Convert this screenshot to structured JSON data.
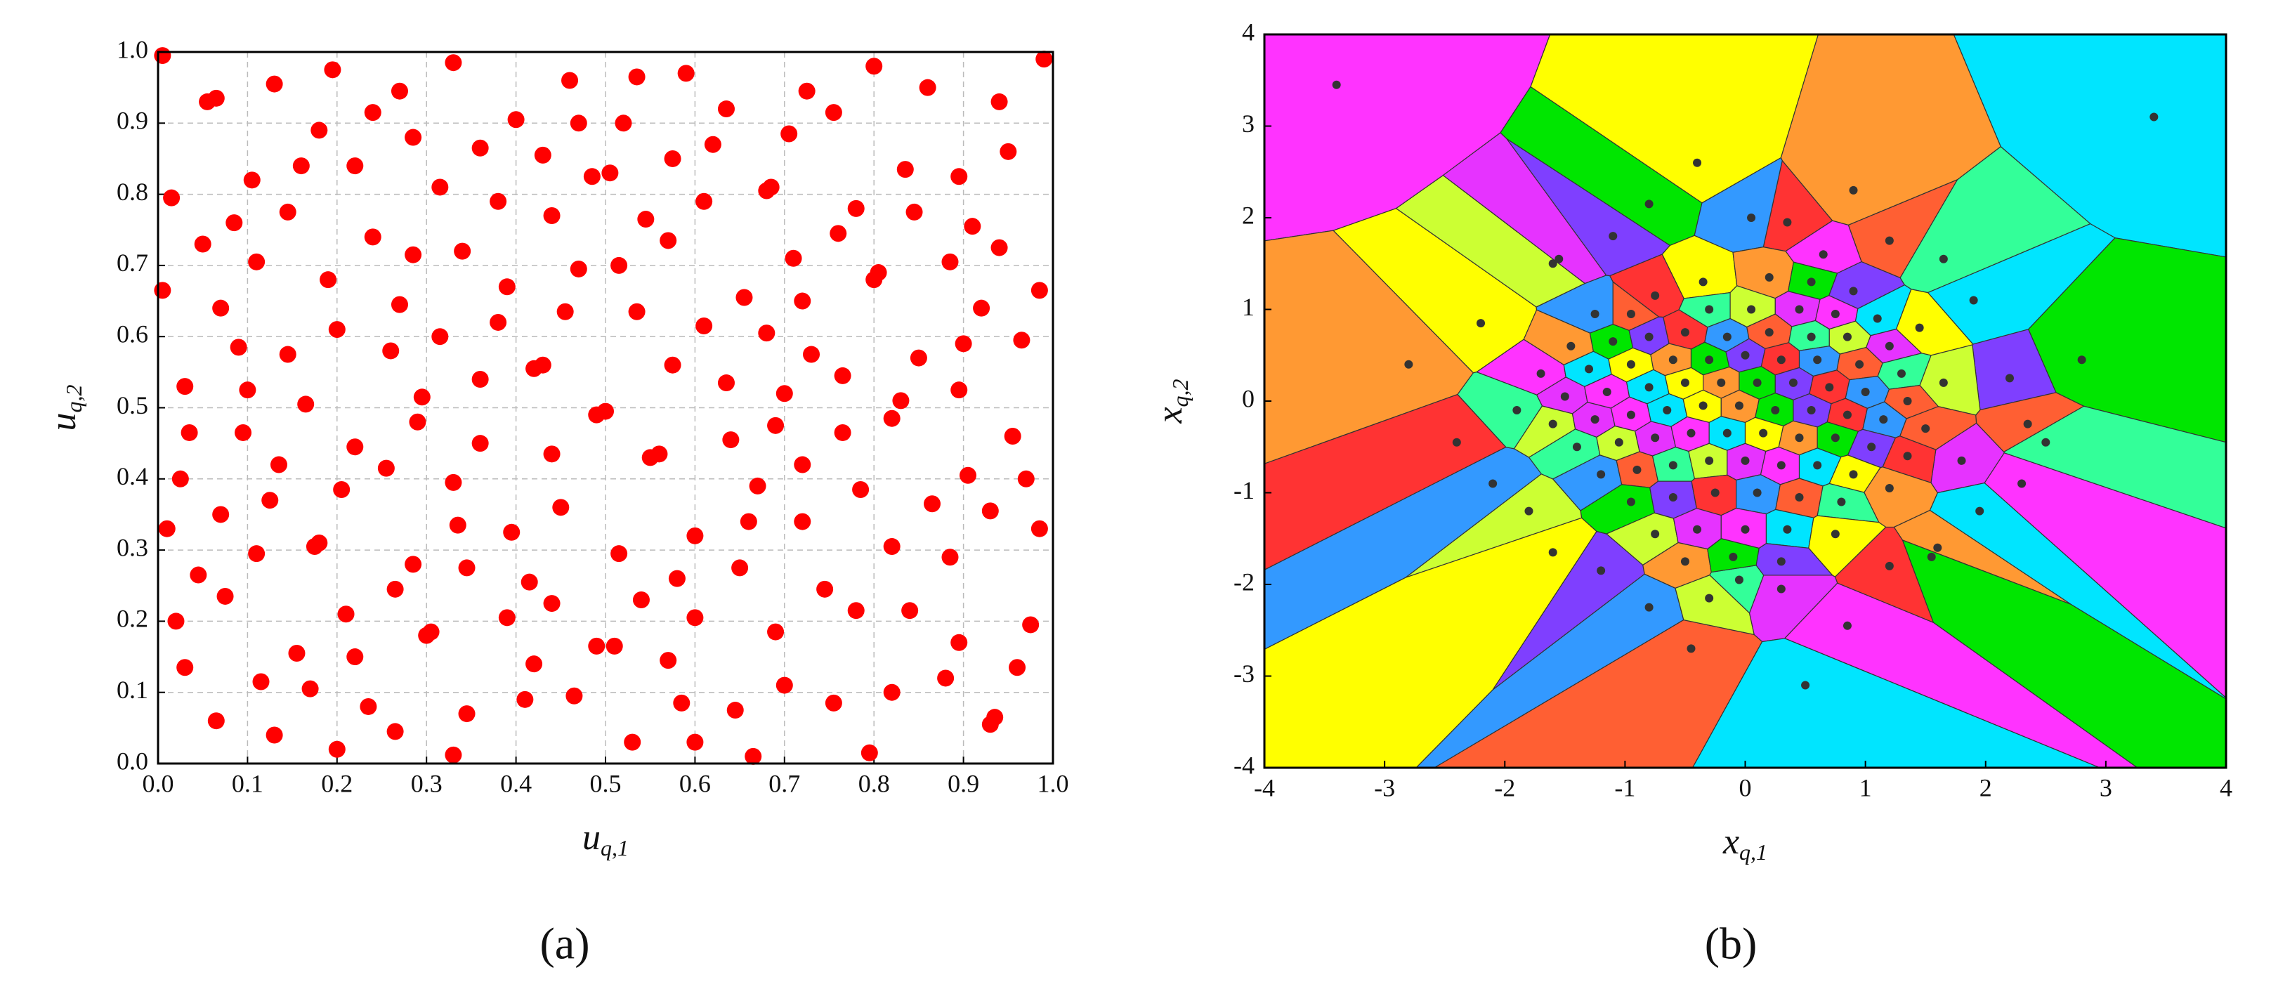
{
  "chart_data": [
    {
      "type": "scatter",
      "panel_label": "(a)",
      "x_label": "u",
      "x_label_sub": "q,1",
      "y_label": "u",
      "y_label_sub": "q,2",
      "color": "#ff0000",
      "grid": true,
      "xlim": [
        0,
        1
      ],
      "ylim": [
        0,
        1
      ],
      "xticks": [
        {
          "value": 0,
          "label": "0.0"
        },
        0.1,
        0.2,
        0.3,
        0.4,
        0.5,
        0.6,
        0.7,
        0.8,
        0.9,
        {
          "value": 1,
          "label": "1.0"
        }
      ],
      "yticks": [
        {
          "value": 0,
          "label": "0.0"
        },
        0.1,
        0.2,
        0.3,
        0.4,
        0.5,
        0.6,
        0.7,
        0.8,
        0.9,
        {
          "value": 1,
          "label": "1.0"
        }
      ],
      "x": [
        0.005,
        0.99,
        0.33,
        0.195,
        0.8,
        0.59,
        0.535,
        0.46,
        0.13,
        0.86,
        0.27,
        0.725,
        0.065,
        0.055,
        0.94,
        0.24,
        0.755,
        0.635,
        0.4,
        0.47,
        0.52,
        0.18,
        0.285,
        0.705,
        0.62,
        0.36,
        0.95,
        0.43,
        0.575,
        0.835,
        0.22,
        0.16,
        0.505,
        0.485,
        0.895,
        0.105,
        0.685,
        0.68,
        0.315,
        0.015,
        0.61,
        0.38,
        0.78,
        0.845,
        0.145,
        0.44,
        0.545,
        0.085,
        0.91,
        0.24,
        0.76,
        0.57,
        0.05,
        0.94,
        0.34,
        0.285,
        0.71,
        0.885,
        0.11,
        0.515,
        0.47,
        0.805,
        0.8,
        0.19,
        0.39,
        0.985,
        0.005,
        0.655,
        0.72,
        0.27,
        0.07,
        0.455,
        0.535,
        0.92,
        0.38,
        0.61,
        0.2,
        0.315,
        0.68,
        0.965,
        0.9,
        0.09,
        0.26,
        0.145,
        0.73,
        0.85,
        0.43,
        0.42,
        0.575,
        0.765,
        0.36,
        0.635,
        0.03,
        0.1,
        0.895,
        0.7,
        0.83,
        0.165,
        0.295,
        0.5,
        0.49,
        0.82,
        0.29,
        0.69,
        0.035,
        0.095,
        0.765,
        0.955,
        0.64,
        0.36,
        0.22,
        0.56,
        0.55,
        0.44,
        0.135,
        0.255,
        0.72,
        0.905,
        0.97,
        0.025,
        0.33,
        0.67,
        0.205,
        0.785,
        0.865,
        0.125,
        0.45,
        0.93,
        0.07,
        0.72,
        0.66,
        0.335,
        0.01,
        0.985,
        0.6,
        0.395,
        0.18,
        0.175,
        0.82,
        0.515,
        0.11,
        0.885,
        0.285,
        0.345,
        0.65,
        0.045,
        0.415,
        0.58,
        0.745,
        0.265,
        0.075,
        0.54,
        0.44,
        0.84,
        0.78,
        0.21,
        0.39,
        0.6,
        0.02,
        0.975,
        0.305,
        0.3,
        0.69,
        0.895,
        0.49,
        0.51,
        0.155,
        0.22,
        0.57,
        0.42,
        0.96,
        0.03,
        0.115,
        0.88,
        0.17,
        0.7,
        0.82,
        0.465,
        0.41,
        0.585,
        0.755,
        0.235,
        0.645,
        0.345,
        0.065,
        0.935,
        0.93,
        0.265,
        0.13,
        0.53,
        0.6,
        0.2,
        0.795,
        0.33,
        0.665
      ],
      "y": [
        0.995,
        0.99,
        0.985,
        0.975,
        0.98,
        0.97,
        0.965,
        0.96,
        0.955,
        0.95,
        0.945,
        0.945,
        0.935,
        0.93,
        0.93,
        0.915,
        0.915,
        0.92,
        0.905,
        0.9,
        0.9,
        0.89,
        0.88,
        0.885,
        0.87,
        0.865,
        0.86,
        0.855,
        0.85,
        0.835,
        0.84,
        0.84,
        0.83,
        0.825,
        0.825,
        0.82,
        0.81,
        0.805,
        0.81,
        0.795,
        0.79,
        0.79,
        0.78,
        0.775,
        0.775,
        0.77,
        0.765,
        0.76,
        0.755,
        0.74,
        0.745,
        0.735,
        0.73,
        0.725,
        0.72,
        0.715,
        0.71,
        0.705,
        0.705,
        0.7,
        0.695,
        0.69,
        0.68,
        0.68,
        0.67,
        0.665,
        0.665,
        0.655,
        0.65,
        0.645,
        0.64,
        0.635,
        0.635,
        0.64,
        0.62,
        0.615,
        0.61,
        0.6,
        0.605,
        0.595,
        0.59,
        0.585,
        0.58,
        0.575,
        0.575,
        0.57,
        0.56,
        0.555,
        0.56,
        0.545,
        0.54,
        0.535,
        0.53,
        0.525,
        0.525,
        0.52,
        0.51,
        0.505,
        0.515,
        0.495,
        0.49,
        0.485,
        0.48,
        0.475,
        0.465,
        0.465,
        0.465,
        0.46,
        0.455,
        0.45,
        0.445,
        0.435,
        0.43,
        0.435,
        0.42,
        0.415,
        0.42,
        0.405,
        0.4,
        0.4,
        0.395,
        0.39,
        0.385,
        0.385,
        0.365,
        0.37,
        0.36,
        0.355,
        0.35,
        0.34,
        0.34,
        0.335,
        0.33,
        0.33,
        0.32,
        0.325,
        0.31,
        0.305,
        0.305,
        0.295,
        0.295,
        0.29,
        0.28,
        0.275,
        0.275,
        0.265,
        0.255,
        0.26,
        0.245,
        0.245,
        0.235,
        0.23,
        0.225,
        0.215,
        0.215,
        0.21,
        0.205,
        0.205,
        0.2,
        0.195,
        0.185,
        0.18,
        0.185,
        0.17,
        0.165,
        0.165,
        0.155,
        0.15,
        0.145,
        0.14,
        0.135,
        0.135,
        0.115,
        0.12,
        0.105,
        0.11,
        0.1,
        0.095,
        0.09,
        0.085,
        0.085,
        0.08,
        0.075,
        0.07,
        0.06,
        0.065,
        0.055,
        0.045,
        0.04,
        0.03,
        0.03,
        0.02,
        0.015,
        0.012,
        0.01
      ]
    },
    {
      "type": "scatter",
      "panel_label": "(b)",
      "x_label": "x",
      "x_label_sub": "q,1",
      "y_label": "x",
      "y_label_sub": "q,2",
      "color": "#333333",
      "grid": false,
      "voronoi": true,
      "cell_colors": [
        "#ff33ff",
        "#00e5ff",
        "#ffff00",
        "#ff9933",
        "#00e600",
        "#7f3fff",
        "#ff3333",
        "#3399ff",
        "#ff5f33",
        "#33ff99",
        "#ccff33",
        "#e633ff"
      ],
      "xlim": [
        -4,
        4
      ],
      "ylim": [
        -4,
        4
      ],
      "xticks": [
        -4,
        -3,
        -2,
        -1,
        0,
        1,
        2,
        3,
        4
      ],
      "yticks": [
        -4,
        -3,
        -2,
        -1,
        0,
        1,
        2,
        3,
        4
      ],
      "x": [
        -3.4,
        3.4,
        -0.4,
        0.9,
        -0.8,
        -1.1,
        0.35,
        0.05,
        1.2,
        1.65,
        -1.6,
        -1.55,
        0.65,
        1.9,
        -2.2,
        -2.8,
        2.8,
        2.2,
        -2.4,
        -2.1,
        2.35,
        2.5,
        -1.8,
        1.8,
        2.3,
        1.95,
        -1.6,
        1.6,
        1.55,
        -1.2,
        1.2,
        -0.8,
        -0.45,
        -0.05,
        -0.3,
        0.3,
        0.85,
        0.5,
        -0.35,
        0.2,
        0.55,
        0.9,
        -0.75,
        -1.25,
        -0.95,
        -0.3,
        0.05,
        0.45,
        0.75,
        1.1,
        1.45,
        -1.45,
        -1.1,
        -0.8,
        -0.5,
        -0.15,
        0.2,
        0.55,
        0.85,
        1.2,
        -1.7,
        -1.3,
        -0.95,
        -0.6,
        -0.3,
        0.0,
        0.3,
        0.6,
        0.95,
        1.3,
        1.65,
        -1.5,
        -1.15,
        -0.8,
        -0.5,
        -0.2,
        0.1,
        0.4,
        0.7,
        1.0,
        1.35,
        -1.9,
        -1.6,
        -1.25,
        -0.95,
        -0.65,
        -0.35,
        -0.05,
        0.25,
        0.55,
        0.85,
        1.15,
        1.5,
        -1.4,
        -1.05,
        -0.75,
        -0.45,
        -0.15,
        0.15,
        0.45,
        0.75,
        1.05,
        1.35,
        -1.2,
        -0.9,
        -0.6,
        -0.3,
        0.0,
        0.3,
        0.6,
        0.9,
        1.2,
        -0.95,
        -0.6,
        -0.25,
        0.1,
        0.45,
        0.8,
        -0.75,
        -0.4,
        0.0,
        0.35,
        0.75,
        -0.5,
        -0.1,
        0.3
      ],
      "y": [
        3.45,
        3.1,
        2.6,
        2.3,
        2.15,
        1.8,
        1.95,
        2.0,
        1.75,
        1.55,
        1.5,
        1.55,
        1.6,
        1.1,
        0.85,
        0.4,
        0.45,
        0.25,
        -0.45,
        -0.9,
        -0.25,
        -0.45,
        -1.2,
        -0.65,
        -0.9,
        -1.2,
        -1.65,
        -1.6,
        -1.7,
        -1.85,
        -1.8,
        -2.25,
        -2.7,
        -1.95,
        -2.15,
        -2.05,
        -2.45,
        -3.1,
        1.3,
        1.35,
        1.3,
        1.2,
        1.15,
        0.95,
        0.95,
        1.0,
        1.0,
        1.0,
        0.95,
        0.9,
        0.8,
        0.6,
        0.65,
        0.7,
        0.75,
        0.7,
        0.75,
        0.7,
        0.7,
        0.6,
        0.3,
        0.35,
        0.4,
        0.45,
        0.45,
        0.5,
        0.45,
        0.45,
        0.4,
        0.3,
        0.2,
        0.05,
        0.1,
        0.15,
        0.2,
        0.2,
        0.2,
        0.2,
        0.15,
        0.1,
        0.0,
        -0.1,
        -0.25,
        -0.2,
        -0.15,
        -0.1,
        -0.05,
        -0.05,
        -0.1,
        -0.1,
        -0.15,
        -0.2,
        -0.3,
        -0.5,
        -0.45,
        -0.4,
        -0.35,
        -0.35,
        -0.35,
        -0.4,
        -0.4,
        -0.5,
        -0.6,
        -0.8,
        -0.75,
        -0.7,
        -0.65,
        -0.65,
        -0.7,
        -0.7,
        -0.8,
        -0.95,
        -1.1,
        -1.05,
        -1.0,
        -1.0,
        -1.05,
        -1.1,
        -1.45,
        -1.4,
        -1.4,
        -1.4,
        -1.45,
        -1.75,
        -1.7,
        -1.75
      ]
    }
  ]
}
